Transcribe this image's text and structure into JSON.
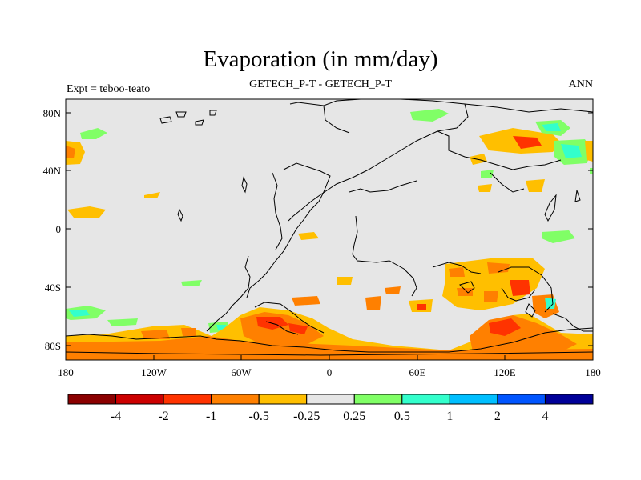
{
  "title": "Evaporation (in mm/day)",
  "left_string": "Expt = teboo-teato",
  "center_string": "GETECH_P-T - GETECH_P-T",
  "right_string": "ANN",
  "lat_labels": [
    "80N",
    "40N",
    "0",
    "40S",
    "80S"
  ],
  "lon_labels": [
    "180",
    "120W",
    "60W",
    "0",
    "60E",
    "120E",
    "180"
  ],
  "colorbar": {
    "colors": [
      "#8b0000",
      "#cc0000",
      "#ff3300",
      "#ff8000",
      "#ffbf00",
      "#e6e6e6",
      "#80ff66",
      "#33ffcc",
      "#00bfff",
      "#0055ff",
      "#000099"
    ],
    "labels": [
      "-4",
      "-2",
      "-1",
      "-0.5",
      "-0.25",
      "0.25",
      "0.5",
      "1",
      "2",
      "4"
    ]
  },
  "colors": {
    "land_background": "#e6e6e6",
    "coastline": "#000000"
  }
}
